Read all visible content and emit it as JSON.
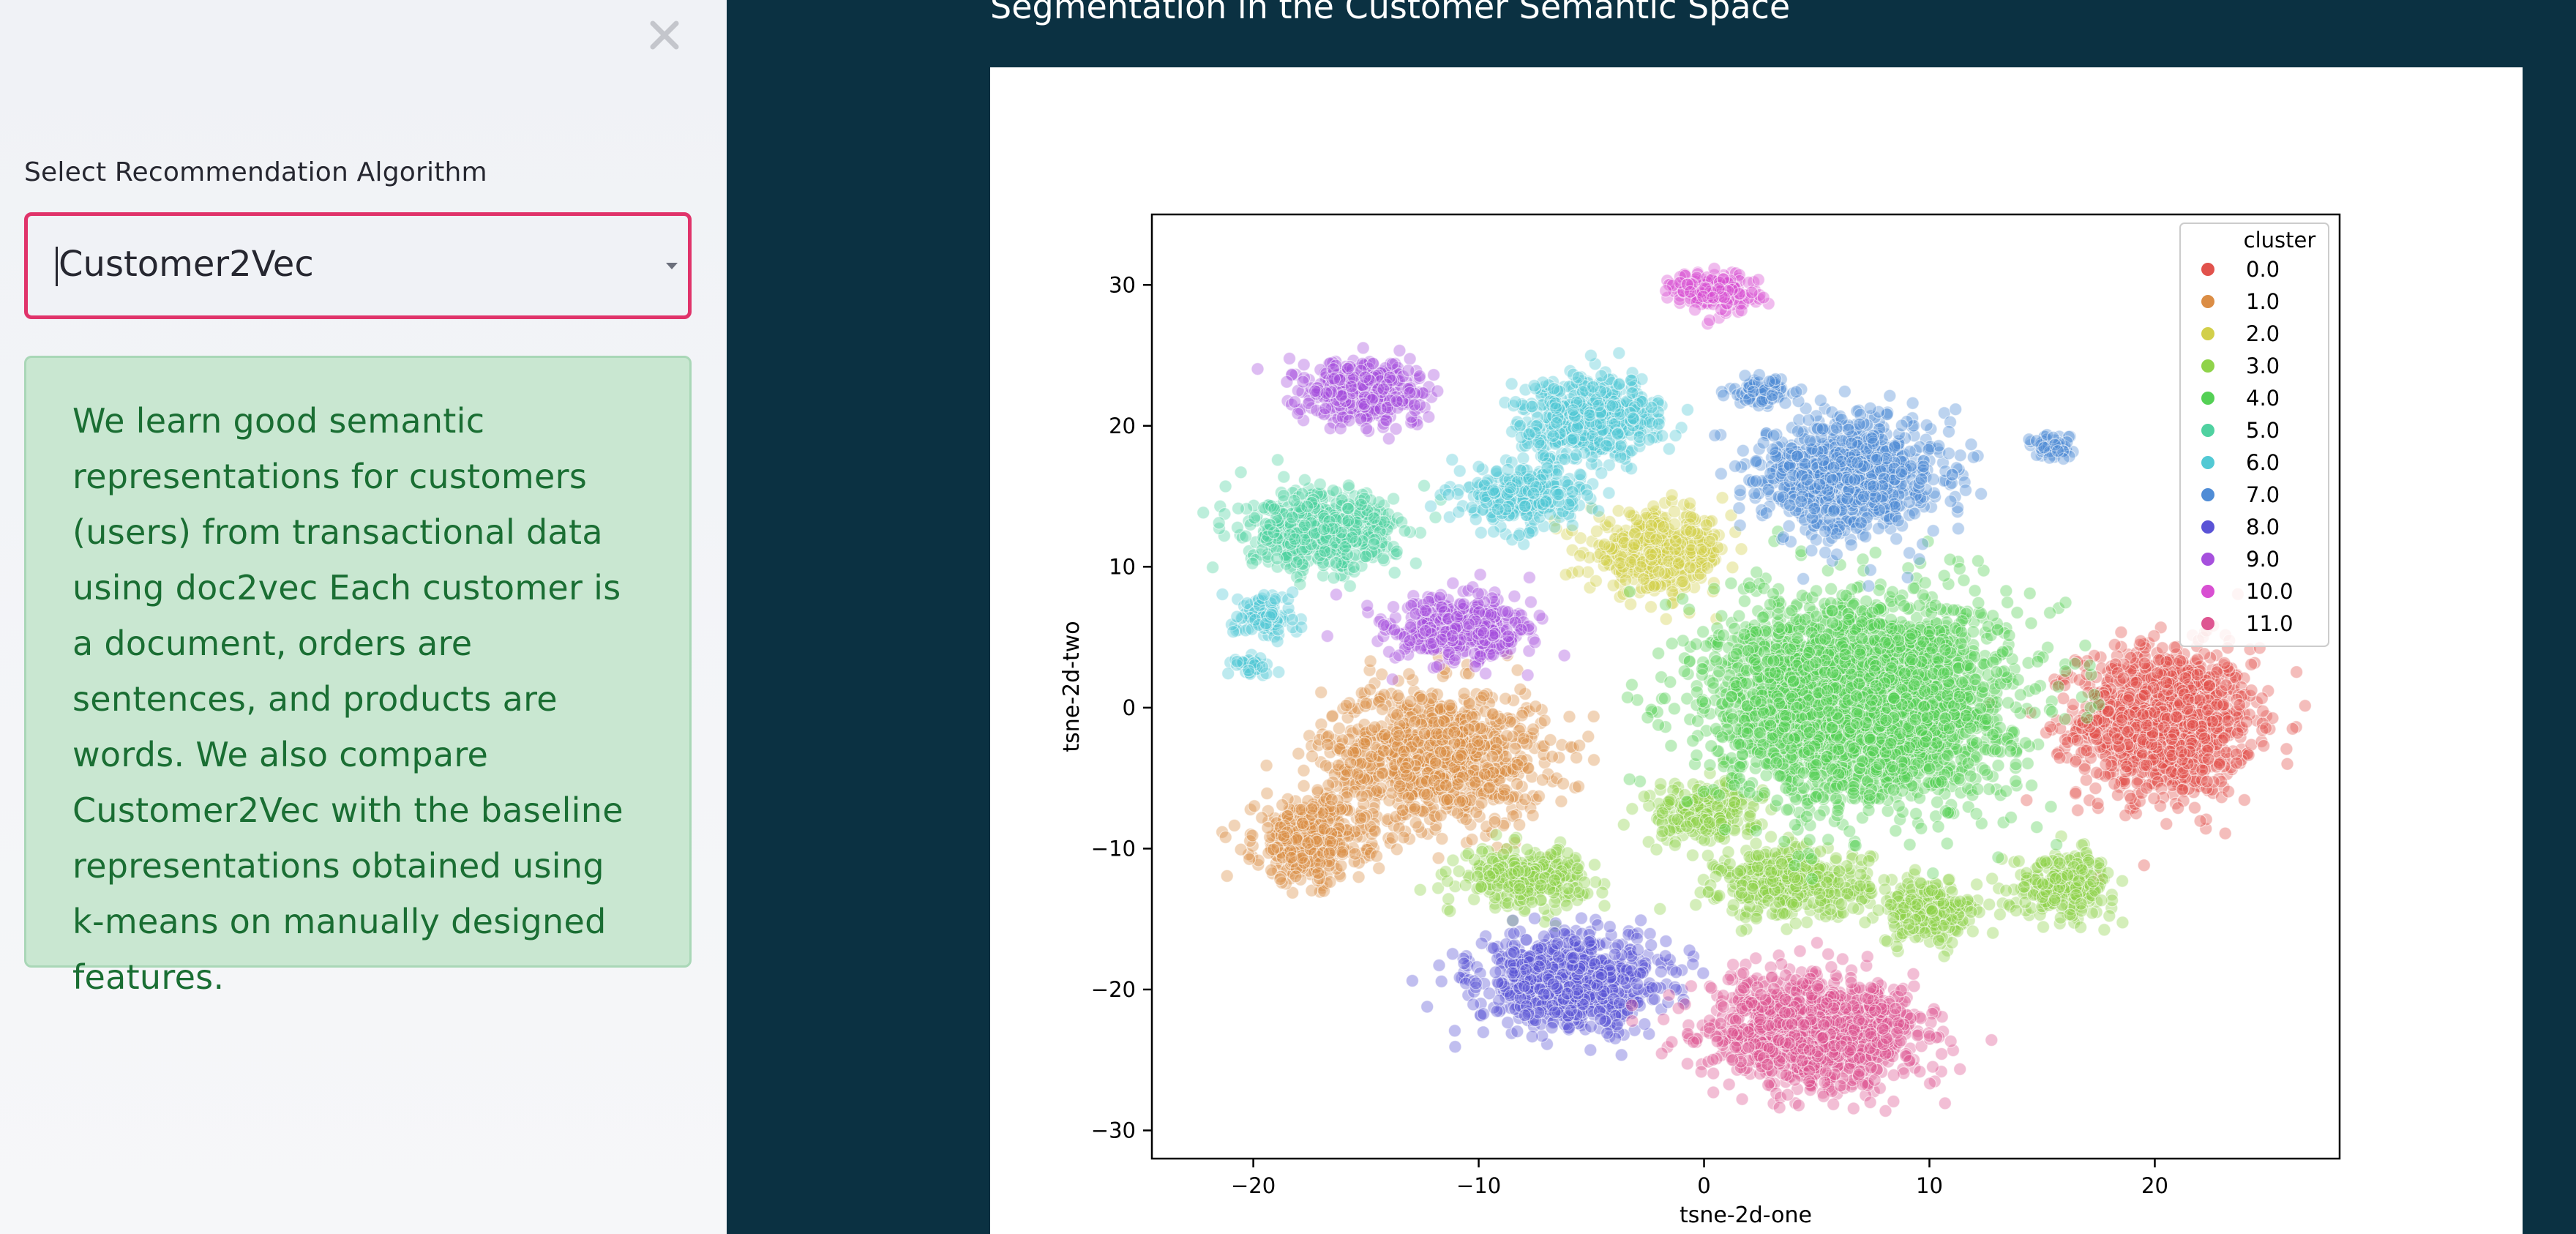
{
  "sidebar": {
    "select_label": "Select Recommendation Algorithm",
    "selected_algorithm": "Customer2Vec",
    "info_text": "We learn good semantic representations for customers (users) from transactional data using doc2vec Each customer is a document, orders are sentences, and products are words. We also compare Customer2Vec with the baseline representations obtained using k-means on manually designed features.",
    "close_icon": "close-icon",
    "chevron_icon": "chevron-down-icon"
  },
  "main": {
    "title": "Segmentation in the Customer Semantic Space"
  },
  "colors": {
    "sidebar_bg": "#f0f2f6",
    "main_bg": "#0b3142",
    "select_border": "#e0336a",
    "info_bg": "#c9e7d1",
    "info_text": "#1a6e33"
  },
  "chart_data": {
    "type": "scatter",
    "title": "",
    "xlabel": "tsne-2d-one",
    "ylabel": "tsne-2d-two",
    "xlim": [
      -24.5,
      28.2
    ],
    "ylim": [
      -32,
      35
    ],
    "xticks": [
      -20,
      -10,
      0,
      10,
      20
    ],
    "yticks": [
      -30,
      -20,
      -10,
      0,
      10,
      20,
      30
    ],
    "xtick_labels": [
      "−20",
      "−10",
      "0",
      "10",
      "20"
    ],
    "ytick_labels": [
      "−30",
      "−20",
      "−10",
      "0",
      "10",
      "20",
      "30"
    ],
    "grid": false,
    "legend": {
      "title": "cluster",
      "placement": "top-right"
    },
    "series": [
      {
        "name": "0.0",
        "color": "#e1524c",
        "clusters": [
          {
            "cx": 20.5,
            "cy": -1.0,
            "sx": 3.5,
            "sy": 4.8,
            "n": 1300
          }
        ]
      },
      {
        "name": "1.0",
        "color": "#db8d45",
        "clusters": [
          {
            "cx": -12.0,
            "cy": -3.5,
            "sx": 4.5,
            "sy": 4.5,
            "n": 1000
          },
          {
            "cx": -17.5,
            "cy": -9.5,
            "sx": 2.2,
            "sy": 2.6,
            "n": 450
          }
        ]
      },
      {
        "name": "2.0",
        "color": "#d2cf4a",
        "clusters": [
          {
            "cx": -2.0,
            "cy": 11.0,
            "sx": 2.8,
            "sy": 2.5,
            "n": 420
          }
        ]
      },
      {
        "name": "3.0",
        "color": "#8fd34a",
        "clusters": [
          {
            "cx": -8.0,
            "cy": -12.0,
            "sx": 2.5,
            "sy": 1.8,
            "n": 320
          },
          {
            "cx": 4.0,
            "cy": -12.5,
            "sx": 3.0,
            "sy": 2.2,
            "n": 420
          },
          {
            "cx": 10.0,
            "cy": -14.5,
            "sx": 2.0,
            "sy": 2.0,
            "n": 240
          },
          {
            "cx": 16.0,
            "cy": -12.5,
            "sx": 2.0,
            "sy": 2.0,
            "n": 260
          },
          {
            "cx": 0.0,
            "cy": -7.5,
            "sx": 2.2,
            "sy": 2.0,
            "n": 240
          }
        ]
      },
      {
        "name": "4.0",
        "color": "#54d055",
        "clusters": [
          {
            "cx": 7.0,
            "cy": 0.5,
            "sx": 5.8,
            "sy": 6.5,
            "n": 3200
          }
        ]
      },
      {
        "name": "5.0",
        "color": "#4fd1a0",
        "clusters": [
          {
            "cx": -17.0,
            "cy": 12.5,
            "sx": 3.0,
            "sy": 2.4,
            "n": 620
          }
        ]
      },
      {
        "name": "6.0",
        "color": "#52c9d4",
        "clusters": [
          {
            "cx": -5.0,
            "cy": 20.5,
            "sx": 2.8,
            "sy": 2.6,
            "n": 560
          },
          {
            "cx": -8.0,
            "cy": 15.0,
            "sx": 2.4,
            "sy": 2.0,
            "n": 300
          },
          {
            "cx": -19.5,
            "cy": 6.5,
            "sx": 1.2,
            "sy": 1.4,
            "n": 110
          },
          {
            "cx": -20.0,
            "cy": 3.0,
            "sx": 0.8,
            "sy": 0.6,
            "n": 40
          }
        ]
      },
      {
        "name": "7.0",
        "color": "#4f8cd6",
        "clusters": [
          {
            "cx": 6.5,
            "cy": 16.5,
            "sx": 3.5,
            "sy": 3.6,
            "n": 1000
          },
          {
            "cx": 15.5,
            "cy": 18.5,
            "sx": 0.9,
            "sy": 0.9,
            "n": 60
          },
          {
            "cx": 2.5,
            "cy": 22.5,
            "sx": 1.3,
            "sy": 1.0,
            "n": 80
          }
        ]
      },
      {
        "name": "8.0",
        "color": "#5a53d6",
        "clusters": [
          {
            "cx": -6.0,
            "cy": -19.5,
            "sx": 3.6,
            "sy": 3.0,
            "n": 850
          }
        ]
      },
      {
        "name": "9.0",
        "color": "#a650dd",
        "clusters": [
          {
            "cx": -15.0,
            "cy": 22.5,
            "sx": 2.4,
            "sy": 2.0,
            "n": 420
          },
          {
            "cx": -11.0,
            "cy": 5.5,
            "sx": 2.8,
            "sy": 2.2,
            "n": 480
          }
        ]
      },
      {
        "name": "10.0",
        "color": "#d84fd2",
        "clusters": [
          {
            "cx": 0.5,
            "cy": 29.5,
            "sx": 1.6,
            "sy": 1.2,
            "n": 220
          }
        ]
      },
      {
        "name": "11.0",
        "color": "#de5591",
        "clusters": [
          {
            "cx": 5.0,
            "cy": -23.0,
            "sx": 4.2,
            "sy": 3.4,
            "n": 1400
          }
        ]
      }
    ]
  }
}
